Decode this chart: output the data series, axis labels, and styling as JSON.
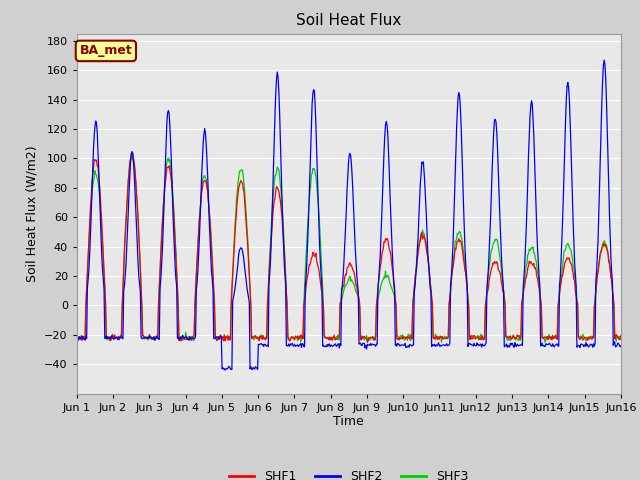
{
  "title": "Soil Heat Flux",
  "xlabel": "Time",
  "ylabel": "Soil Heat Flux (W/m2)",
  "ylim": [
    -60,
    185
  ],
  "yticks": [
    -40,
    -20,
    0,
    20,
    40,
    60,
    80,
    100,
    120,
    140,
    160,
    180
  ],
  "legend_labels": [
    "SHF1",
    "SHF2",
    "SHF3"
  ],
  "line_colors": [
    "#ff0000",
    "#0000ff",
    "#00cc00"
  ],
  "ba_met_label": "BA_met",
  "ba_met_bg": "#ffff99",
  "ba_met_border": "#8b0000",
  "fig_bg": "#d0d0d0",
  "plot_bg": "#e8e8e8",
  "grid_color": "#ffffff",
  "n_days": 15,
  "title_fontsize": 11,
  "axis_fontsize": 9,
  "tick_fontsize": 8,
  "shf1_peaks": [
    100,
    103,
    95,
    86,
    85,
    80,
    35,
    28,
    45,
    48,
    45,
    30,
    30,
    32,
    42
  ],
  "shf2_peaks": [
    126,
    105,
    133,
    120,
    40,
    157,
    147,
    105,
    125,
    98,
    145,
    128,
    139,
    152,
    167
  ],
  "shf3_peaks": [
    90,
    102,
    100,
    88,
    94,
    94,
    94,
    18,
    20,
    50,
    50,
    45,
    40,
    42,
    43
  ],
  "shf1_night": -22,
  "shf2_night": -22,
  "shf3_night": -22,
  "shf2_day5_trough": -43
}
